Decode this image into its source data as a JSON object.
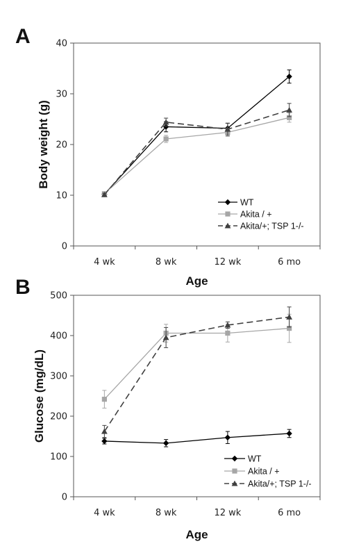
{
  "panels": [
    {
      "letter": "A",
      "chart_data": {
        "type": "line",
        "categories": [
          "4 wk",
          "8 wk",
          "12 wk",
          "6 mo"
        ],
        "xlabel": "Age",
        "ylabel": "Body weight (g)",
        "ylim": [
          0,
          40
        ],
        "yticks": [
          0,
          10,
          20,
          30,
          40
        ],
        "grid": false,
        "legend_position": "bottom-right",
        "series": [
          {
            "name": "WT",
            "values": [
              10.2,
              23.5,
              23.2,
              33.4
            ],
            "errors": [
              0.3,
              1.0,
              1.0,
              1.3
            ],
            "color": "#000000",
            "marker": "diamond",
            "dash": "solid"
          },
          {
            "name": "Akita / +",
            "values": [
              10.3,
              21.1,
              22.4,
              25.3
            ],
            "errors": [
              0.3,
              0.7,
              0.8,
              0.9
            ],
            "color": "#a6a6a6",
            "marker": "square",
            "dash": "solid"
          },
          {
            "name": "Akita/+; TSP 1-/-",
            "values": [
              10.1,
              24.4,
              23.0,
              26.8
            ],
            "errors": [
              0.3,
              0.8,
              1.2,
              1.3
            ],
            "color": "#404040",
            "marker": "triangle",
            "dash": "dashed"
          }
        ]
      }
    },
    {
      "letter": "B",
      "chart_data": {
        "type": "line",
        "categories": [
          "4 wk",
          "8 wk",
          "12 wk",
          "6 mo"
        ],
        "xlabel": "Age",
        "ylabel": "Glucose (mg/dL)",
        "ylim": [
          0,
          500
        ],
        "yticks": [
          0,
          100,
          200,
          300,
          400,
          500
        ],
        "grid": false,
        "legend_position": "bottom-right",
        "series": [
          {
            "name": "WT",
            "values": [
              138,
              133,
              147,
              157
            ],
            "errors": [
              7,
              9,
              15,
              10
            ],
            "color": "#000000",
            "marker": "diamond",
            "dash": "solid"
          },
          {
            "name": "Akita / +",
            "values": [
              242,
              406,
              406,
              418
            ],
            "errors": [
              22,
              22,
              22,
              35
            ],
            "color": "#a6a6a6",
            "marker": "square",
            "dash": "solid"
          },
          {
            "name": "Akita/+; TSP 1-/-",
            "values": [
              162,
              395,
              426,
              446
            ],
            "errors": [
              15,
              25,
              8,
              25
            ],
            "color": "#404040",
            "marker": "triangle",
            "dash": "dashed"
          }
        ]
      }
    }
  ]
}
